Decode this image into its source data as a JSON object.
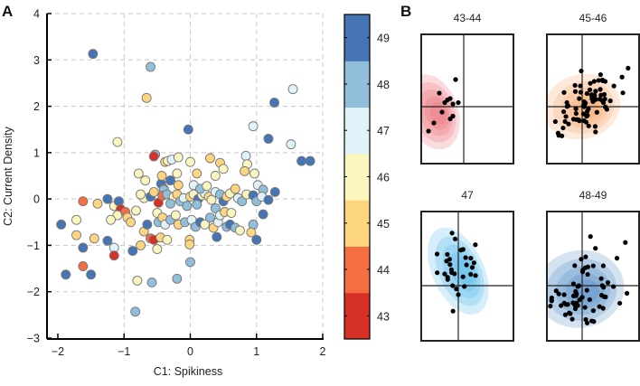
{
  "panels": {
    "a_label": "A",
    "b_label": "B"
  },
  "chart_data": [
    {
      "type": "scatter",
      "title": "",
      "xlabel": "C1: Spikiness",
      "ylabel": "C2: Current Density",
      "xlim": [
        -2,
        2
      ],
      "ylim": [
        -3,
        4
      ],
      "xticks": [
        "-2",
        "-1",
        "0",
        "1",
        "2"
      ],
      "yticks": [
        "-3",
        "-2",
        "-1",
        "0",
        "1",
        "2",
        "3",
        "4"
      ],
      "xtick_values": [
        -2,
        -1,
        0,
        1,
        2
      ],
      "ytick_values": [
        -3,
        -2,
        -1,
        0,
        1,
        2,
        3,
        4
      ],
      "grid": true,
      "colorbar": {
        "label_values": [
          "43",
          "44",
          "45",
          "46",
          "47",
          "48",
          "49"
        ],
        "colors": [
          "#d73027",
          "#f46d43",
          "#fdd580",
          "#fbf5c0",
          "#e0f3f8",
          "#91bfdb",
          "#4575b4"
        ],
        "range": [
          42.5,
          49.5
        ]
      },
      "points": [
        {
          "x": -1.47,
          "y": 3.13,
          "c": 49
        },
        {
          "x": -0.6,
          "y": 2.85,
          "c": 48
        },
        {
          "x": -0.66,
          "y": 2.18,
          "c": 45
        },
        {
          "x": -1.1,
          "y": 1.23,
          "c": 46
        },
        {
          "x": -0.53,
          "y": 0.96,
          "c": 48
        },
        {
          "x": -0.55,
          "y": 0.92,
          "c": 43
        },
        {
          "x": -0.38,
          "y": 0.8,
          "c": 45
        },
        {
          "x": -0.34,
          "y": 0.82,
          "c": 46
        },
        {
          "x": -0.28,
          "y": 0.85,
          "c": 47
        },
        {
          "x": -0.03,
          "y": 1.5,
          "c": 49
        },
        {
          "x": 0.3,
          "y": 0.88,
          "c": 45
        },
        {
          "x": 0.45,
          "y": 0.78,
          "c": 45
        },
        {
          "x": 0.0,
          "y": 0.8,
          "c": 46
        },
        {
          "x": -0.2,
          "y": 0.55,
          "c": 46
        },
        {
          "x": -0.78,
          "y": 0.55,
          "c": 46
        },
        {
          "x": -0.68,
          "y": 0.4,
          "c": 46
        },
        {
          "x": -0.3,
          "y": 0.4,
          "c": 49
        },
        {
          "x": -0.44,
          "y": 0.33,
          "c": 49
        },
        {
          "x": -0.4,
          "y": 0.22,
          "c": 43
        },
        {
          "x": 1.55,
          "y": 2.37,
          "c": 47
        },
        {
          "x": 1.27,
          "y": 2.08,
          "c": 49
        },
        {
          "x": 0.95,
          "y": 1.57,
          "c": 47
        },
        {
          "x": 1.18,
          "y": 1.3,
          "c": 49
        },
        {
          "x": 0.84,
          "y": 0.93,
          "c": 47
        },
        {
          "x": 1.52,
          "y": 1.18,
          "c": 47
        },
        {
          "x": 1.68,
          "y": 0.82,
          "c": 49
        },
        {
          "x": 1.81,
          "y": 0.82,
          "c": 49
        },
        {
          "x": -0.18,
          "y": 0.9,
          "c": 46
        },
        {
          "x": -0.43,
          "y": 0.5,
          "c": 45
        },
        {
          "x": 0.1,
          "y": 0.55,
          "c": 45
        },
        {
          "x": 0.38,
          "y": 0.5,
          "c": 46
        },
        {
          "x": 0.5,
          "y": 0.65,
          "c": 46
        },
        {
          "x": 0.86,
          "y": 0.75,
          "c": 46
        },
        {
          "x": 0.82,
          "y": 0.6,
          "c": 45
        },
        {
          "x": 0.97,
          "y": 0.55,
          "c": 46
        },
        {
          "x": 1.02,
          "y": 0.3,
          "c": 47
        },
        {
          "x": 1.1,
          "y": 0.2,
          "c": 48
        },
        {
          "x": -0.4,
          "y": 0.2,
          "c": 48
        },
        {
          "x": -0.7,
          "y": 0.02,
          "c": 46
        },
        {
          "x": -0.75,
          "y": 0.1,
          "c": 46
        },
        {
          "x": -0.6,
          "y": 0.05,
          "c": 49
        },
        {
          "x": -0.55,
          "y": 0.15,
          "c": 45
        },
        {
          "x": -0.48,
          "y": -0.08,
          "c": 43
        },
        {
          "x": -0.42,
          "y": 0.07,
          "c": 44
        },
        {
          "x": -0.35,
          "y": 0.1,
          "c": 48
        },
        {
          "x": -0.25,
          "y": 0.05,
          "c": 46
        },
        {
          "x": -0.2,
          "y": 0.1,
          "c": 45
        },
        {
          "x": -0.15,
          "y": -0.05,
          "c": 48
        },
        {
          "x": -0.1,
          "y": 0.02,
          "c": 47
        },
        {
          "x": -0.3,
          "y": -0.1,
          "c": 48
        },
        {
          "x": -0.05,
          "y": -0.15,
          "c": 48
        },
        {
          "x": 0.0,
          "y": 0.05,
          "c": 45
        },
        {
          "x": 0.05,
          "y": 0.1,
          "c": 46
        },
        {
          "x": 0.12,
          "y": 0.0,
          "c": 49
        },
        {
          "x": 0.1,
          "y": -0.12,
          "c": 48
        },
        {
          "x": 0.18,
          "y": 0.08,
          "c": 46
        },
        {
          "x": 0.22,
          "y": 0.12,
          "c": 47
        },
        {
          "x": 0.28,
          "y": 0.05,
          "c": 45
        },
        {
          "x": 0.32,
          "y": -0.02,
          "c": 46
        },
        {
          "x": 0.38,
          "y": 0.15,
          "c": 47
        },
        {
          "x": 0.45,
          "y": 0.1,
          "c": 48
        },
        {
          "x": 0.5,
          "y": -0.05,
          "c": 49
        },
        {
          "x": 0.55,
          "y": 0.05,
          "c": 45
        },
        {
          "x": 0.6,
          "y": 0.12,
          "c": 46
        },
        {
          "x": 0.68,
          "y": 0.22,
          "c": 45
        },
        {
          "x": 0.72,
          "y": 0.02,
          "c": 47
        },
        {
          "x": 0.78,
          "y": -0.05,
          "c": 48
        },
        {
          "x": 0.85,
          "y": 0.1,
          "c": 46
        },
        {
          "x": 0.95,
          "y": 0.08,
          "c": 49
        },
        {
          "x": 1.0,
          "y": -0.05,
          "c": 48
        },
        {
          "x": 1.08,
          "y": 0.05,
          "c": 47
        },
        {
          "x": 1.18,
          "y": -0.02,
          "c": 49
        },
        {
          "x": 1.28,
          "y": 0.15,
          "c": 49
        },
        {
          "x": -1.95,
          "y": -0.55,
          "c": 49
        },
        {
          "x": -1.72,
          "y": -0.45,
          "c": 46
        },
        {
          "x": -1.62,
          "y": -0.05,
          "c": 44
        },
        {
          "x": -1.4,
          "y": -0.1,
          "c": 45
        },
        {
          "x": -1.25,
          "y": 0.0,
          "c": 49
        },
        {
          "x": -1.15,
          "y": -0.15,
          "c": 46
        },
        {
          "x": -1.08,
          "y": -0.05,
          "c": 49
        },
        {
          "x": -1.05,
          "y": -0.22,
          "c": 43
        },
        {
          "x": -1.1,
          "y": -0.35,
          "c": 46
        },
        {
          "x": -1.2,
          "y": -0.45,
          "c": 46
        },
        {
          "x": -0.98,
          "y": -0.28,
          "c": 44
        },
        {
          "x": -0.95,
          "y": -0.4,
          "c": 45
        },
        {
          "x": -0.9,
          "y": -0.5,
          "c": 45
        },
        {
          "x": -0.82,
          "y": -0.25,
          "c": 46
        },
        {
          "x": -0.7,
          "y": -0.7,
          "c": 45
        },
        {
          "x": -0.65,
          "y": -0.55,
          "c": 49
        },
        {
          "x": -0.5,
          "y": -0.3,
          "c": 46
        },
        {
          "x": -0.48,
          "y": -0.5,
          "c": 48
        },
        {
          "x": -0.42,
          "y": -0.4,
          "c": 45
        },
        {
          "x": -0.38,
          "y": -0.55,
          "c": 47
        },
        {
          "x": -0.3,
          "y": -0.45,
          "c": 48
        },
        {
          "x": -0.22,
          "y": -0.35,
          "c": 46
        },
        {
          "x": -0.18,
          "y": -0.55,
          "c": 45
        },
        {
          "x": -0.08,
          "y": -0.5,
          "c": 48
        },
        {
          "x": 0.02,
          "y": -0.45,
          "c": 47
        },
        {
          "x": 0.08,
          "y": -0.6,
          "c": 48
        },
        {
          "x": 0.15,
          "y": -0.5,
          "c": 49
        },
        {
          "x": 0.22,
          "y": -0.55,
          "c": 46
        },
        {
          "x": 0.3,
          "y": -0.4,
          "c": 48
        },
        {
          "x": 0.35,
          "y": -0.62,
          "c": 45
        },
        {
          "x": 0.42,
          "y": -0.5,
          "c": 47
        },
        {
          "x": 0.55,
          "y": -0.6,
          "c": 48
        },
        {
          "x": 0.6,
          "y": -0.55,
          "c": 49
        },
        {
          "x": 0.68,
          "y": -0.62,
          "c": 48
        },
        {
          "x": 0.75,
          "y": -0.68,
          "c": 46
        },
        {
          "x": 0.95,
          "y": -0.55,
          "c": 48
        },
        {
          "x": 0.92,
          "y": -0.72,
          "c": 45
        },
        {
          "x": 1.1,
          "y": -0.33,
          "c": 49
        },
        {
          "x": 0.38,
          "y": -0.2,
          "c": 48
        },
        {
          "x": 0.45,
          "y": -0.35,
          "c": 47
        },
        {
          "x": 0.52,
          "y": -0.28,
          "c": 45
        },
        {
          "x": 0.62,
          "y": -0.3,
          "c": 46
        },
        {
          "x": -1.62,
          "y": -1.05,
          "c": 49
        },
        {
          "x": -1.72,
          "y": -0.78,
          "c": 45
        },
        {
          "x": -1.45,
          "y": -0.85,
          "c": 45
        },
        {
          "x": -1.25,
          "y": -0.9,
          "c": 49
        },
        {
          "x": -1.15,
          "y": -1.05,
          "c": 47
        },
        {
          "x": -1.15,
          "y": -1.22,
          "c": 43
        },
        {
          "x": -0.87,
          "y": -1.12,
          "c": 49
        },
        {
          "x": -0.75,
          "y": -1.0,
          "c": 45
        },
        {
          "x": -0.6,
          "y": -0.85,
          "c": 44
        },
        {
          "x": -0.55,
          "y": -0.88,
          "c": 43
        },
        {
          "x": -0.5,
          "y": -1.08,
          "c": 46
        },
        {
          "x": -0.45,
          "y": -0.83,
          "c": 45
        },
        {
          "x": -0.35,
          "y": -0.88,
          "c": 46
        },
        {
          "x": -0.01,
          "y": -0.88,
          "c": 45
        },
        {
          "x": -0.01,
          "y": -0.98,
          "c": 45
        },
        {
          "x": 0.4,
          "y": -0.82,
          "c": 49
        },
        {
          "x": 0.0,
          "y": -1.36,
          "c": 48
        },
        {
          "x": -0.2,
          "y": -1.72,
          "c": 48
        },
        {
          "x": -0.58,
          "y": -1.8,
          "c": 48
        },
        {
          "x": -0.8,
          "y": -1.76,
          "c": 46
        },
        {
          "x": -1.88,
          "y": -1.63,
          "c": 49
        },
        {
          "x": -1.5,
          "y": -1.63,
          "c": 49
        },
        {
          "x": -1.62,
          "y": -1.45,
          "c": 44
        },
        {
          "x": -0.83,
          "y": -2.43,
          "c": 48
        },
        {
          "x": 1.0,
          "y": -0.88,
          "c": 49
        },
        {
          "x": -0.18,
          "y": 0.3,
          "c": 45
        },
        {
          "x": 0.05,
          "y": 0.3,
          "c": 47
        },
        {
          "x": 0.15,
          "y": 0.22,
          "c": 48
        },
        {
          "x": 0.25,
          "y": 0.28,
          "c": 46
        }
      ]
    },
    {
      "type": "scatter",
      "subtitle": "43-44",
      "color": "#e8606a",
      "points": [
        [
          -0.9,
          0.5
        ],
        [
          -0.3,
          1.0
        ],
        [
          -0.6,
          0.25
        ],
        [
          -0.5,
          0.3
        ],
        [
          -0.7,
          0.15
        ],
        [
          -0.4,
          0.1
        ],
        [
          -0.2,
          0.15
        ],
        [
          -0.8,
          -0.2
        ],
        [
          -1.1,
          -0.6
        ],
        [
          -1.3,
          -0.9
        ],
        [
          -0.5,
          -0.45
        ],
        [
          -0.4,
          -0.35
        ]
      ]
    },
    {
      "type": "scatter",
      "subtitle": "45-46",
      "color": "#f4a15a"
    },
    {
      "type": "scatter",
      "subtitle": "47",
      "color": "#3fb3e6"
    },
    {
      "type": "scatter",
      "subtitle": "48-49",
      "color": "#3f7fc0"
    }
  ]
}
